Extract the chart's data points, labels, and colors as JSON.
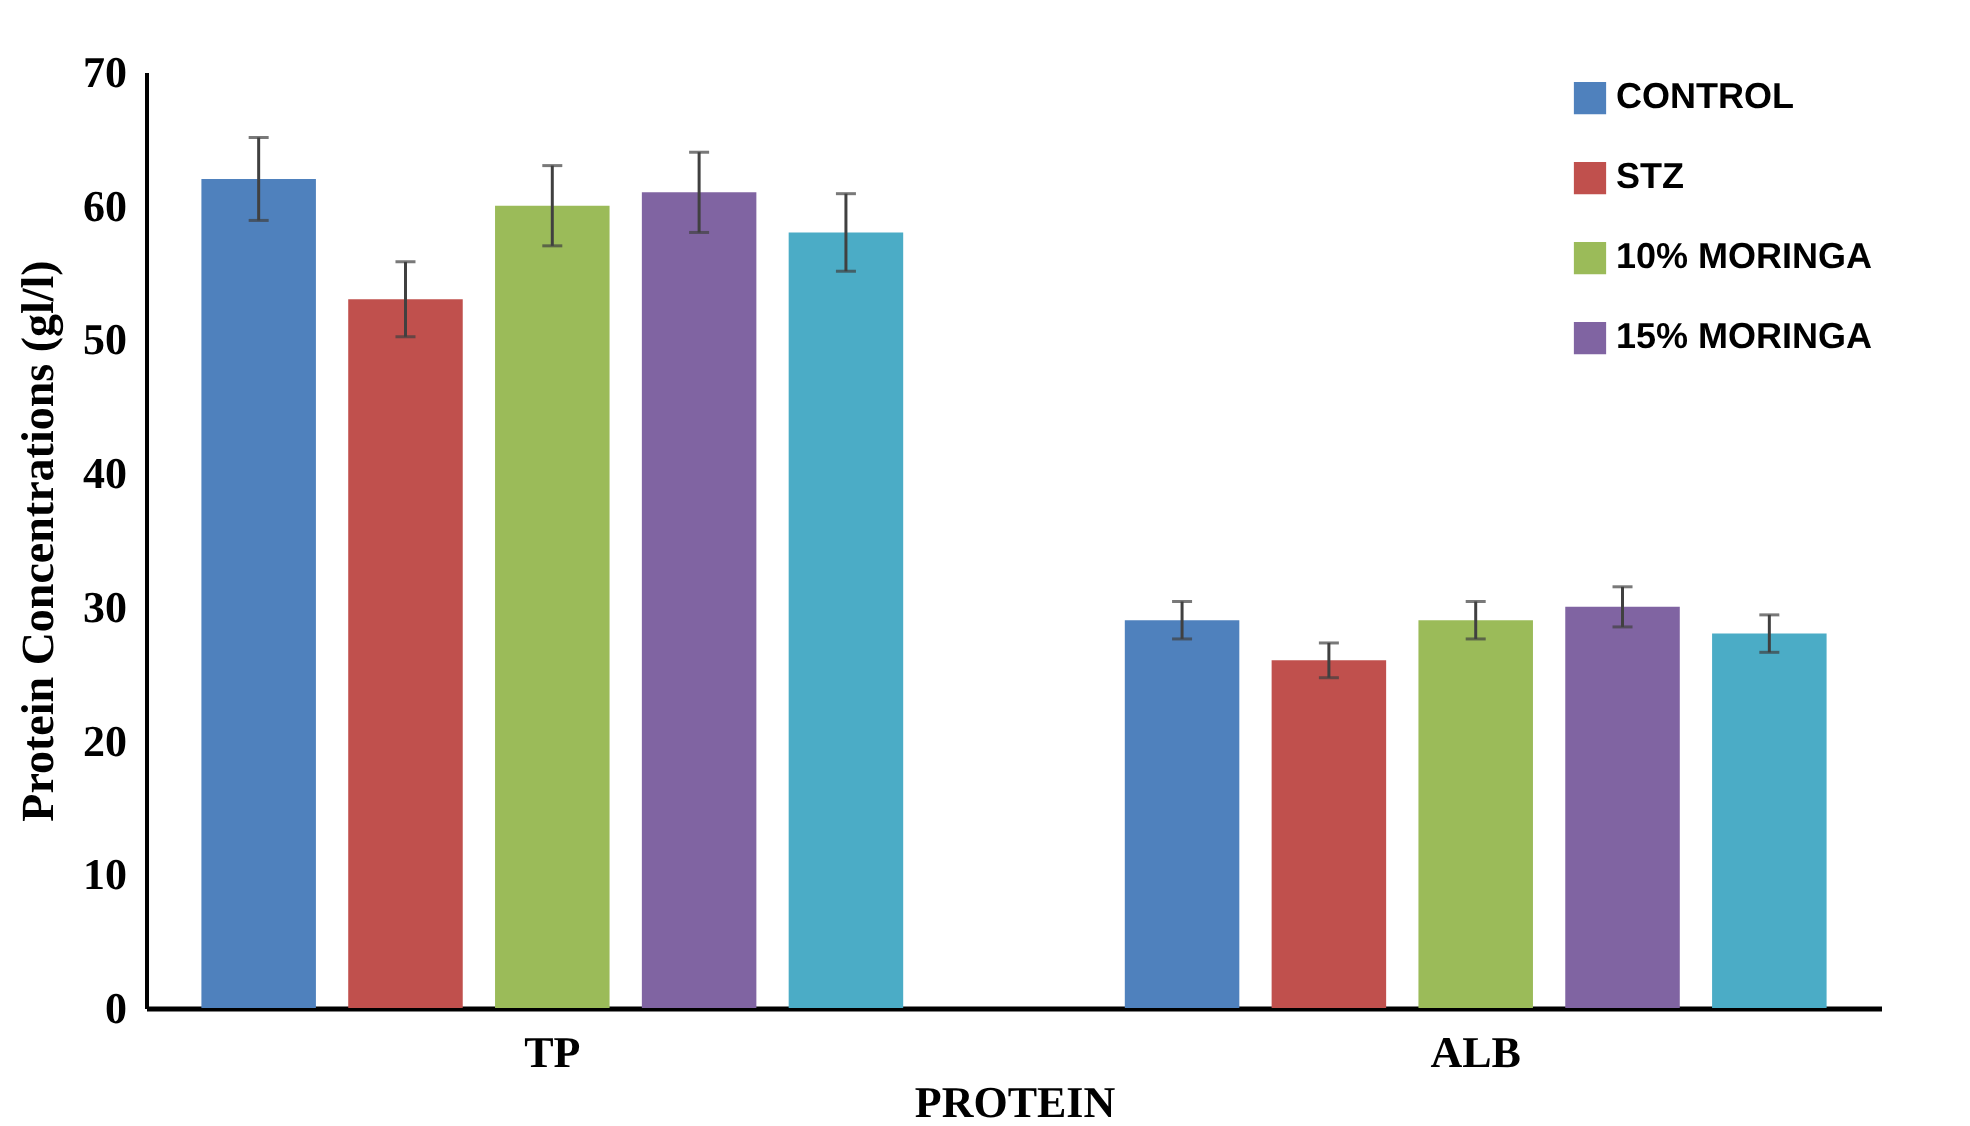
{
  "chart_data": {
    "type": "bar",
    "xlabel": "PROTEIN",
    "ylabel": "Protein Concentrations (gl/l)",
    "categories": [
      "TP",
      "ALB"
    ],
    "ylim": [
      0,
      70
    ],
    "yticks": [
      0,
      10,
      20,
      30,
      40,
      50,
      60,
      70
    ],
    "grid": false,
    "legend": "top right",
    "series": [
      {
        "name": "CONTROL",
        "color": "#4f81bd",
        "values": [
          62,
          29
        ],
        "errors": [
          3.1,
          1.4
        ]
      },
      {
        "name": "STZ",
        "color": "#c0504d",
        "values": [
          53,
          26
        ],
        "errors": [
          2.8,
          1.3
        ]
      },
      {
        "name": "10% MORINGA",
        "color": "#9bbb59",
        "values": [
          60,
          29
        ],
        "errors": [
          3,
          1.4
        ]
      },
      {
        "name": "15% MORINGA",
        "color": "#8064a2",
        "values": [
          61,
          30
        ],
        "errors": [
          3,
          1.5
        ]
      },
      {
        "color": "#4bacc6",
        "values": [
          58,
          28
        ],
        "errors": [
          2.9,
          1.4
        ]
      }
    ]
  }
}
